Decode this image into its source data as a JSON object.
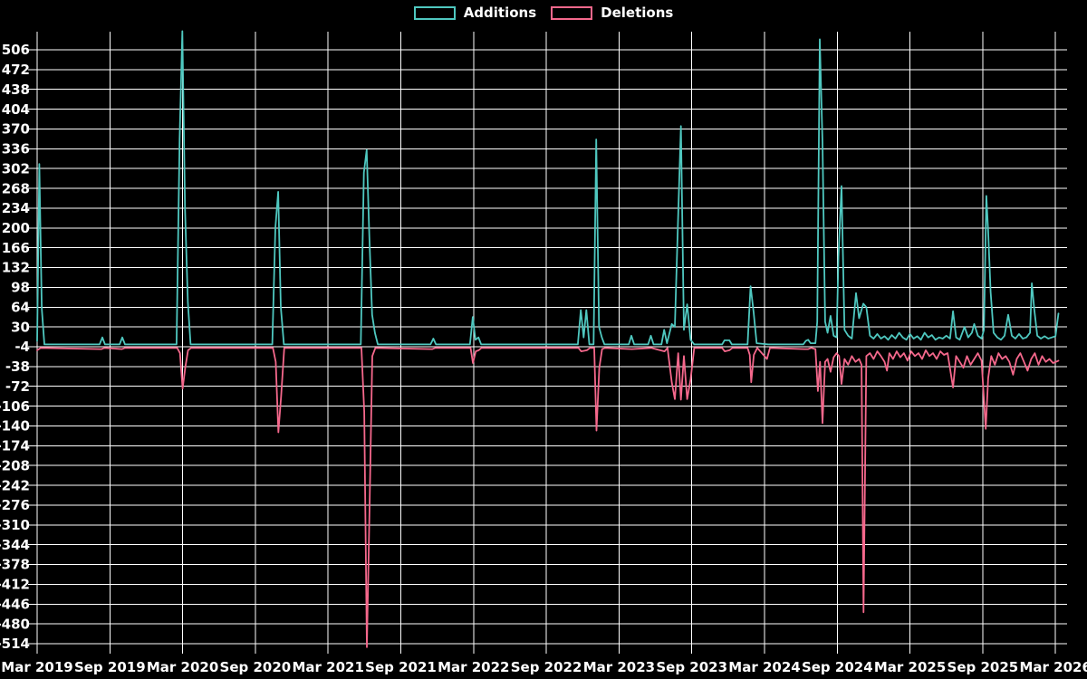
{
  "colors": {
    "background": "#000000",
    "grid": "#ffffff",
    "text": "#ffffff",
    "additions": "#4fc8c0",
    "deletions": "#f5688c"
  },
  "chart_data": {
    "type": "line",
    "title": "",
    "xlabel": "",
    "ylabel": "",
    "grid": true,
    "legend_position": "top-center",
    "x_unit": "months since Mar 2019 (weekly commit additions/deletions)",
    "x_tick_labels": [
      "Mar 2019",
      "Sep 2019",
      "Mar 2020",
      "Sep 2020",
      "Mar 2021",
      "Sep 2021",
      "Mar 2022",
      "Sep 2022",
      "Mar 2023",
      "Sep 2023",
      "Mar 2024",
      "Sep 2024",
      "Mar 2025",
      "Sep 2025",
      "Mar 2026"
    ],
    "x_tick_months": [
      0,
      6,
      12,
      18,
      24,
      30,
      36,
      42,
      48,
      54,
      60,
      66,
      72,
      78,
      84
    ],
    "y_ticks": [
      506,
      472,
      438,
      404,
      370,
      336,
      302,
      268,
      234,
      200,
      166,
      132,
      98,
      64,
      30,
      -4,
      -38,
      -72,
      -106,
      -140,
      -174,
      -208,
      -242,
      -276,
      -310,
      -344,
      -378,
      -412,
      -446,
      -480,
      -514
    ],
    "y_range": [
      -514,
      506
    ],
    "series": [
      {
        "name": "Additions",
        "color_key": "additions",
        "points": [
          [
            0,
            6
          ],
          [
            0.18,
            310
          ],
          [
            0.38,
            62
          ],
          [
            0.6,
            0
          ],
          [
            5.15,
            0
          ],
          [
            5.38,
            12
          ],
          [
            5.6,
            0
          ],
          [
            6.8,
            0
          ],
          [
            7.02,
            12
          ],
          [
            7.25,
            0
          ],
          [
            11.5,
            0
          ],
          [
            11.75,
            354
          ],
          [
            11.98,
            538
          ],
          [
            12.2,
            230
          ],
          [
            12.43,
            72
          ],
          [
            12.66,
            0
          ],
          [
            19.4,
            0
          ],
          [
            19.65,
            200
          ],
          [
            19.88,
            262
          ],
          [
            20.1,
            64
          ],
          [
            20.35,
            0
          ],
          [
            26.7,
            0
          ],
          [
            26.95,
            295
          ],
          [
            27.18,
            334
          ],
          [
            27.4,
            187
          ],
          [
            27.63,
            51
          ],
          [
            27.86,
            20
          ],
          [
            28.1,
            0
          ],
          [
            32.45,
            0
          ],
          [
            32.68,
            10
          ],
          [
            32.9,
            0
          ],
          [
            35.7,
            0
          ],
          [
            35.93,
            47
          ],
          [
            36.16,
            8
          ],
          [
            36.4,
            12
          ],
          [
            36.63,
            0
          ],
          [
            44.6,
            0
          ],
          [
            44.85,
            59
          ],
          [
            45.08,
            12
          ],
          [
            45.3,
            59
          ],
          [
            45.55,
            0
          ],
          [
            45.9,
            0
          ],
          [
            46.12,
            352
          ],
          [
            46.35,
            30
          ],
          [
            46.58,
            12
          ],
          [
            46.8,
            0
          ],
          [
            48.8,
            0
          ],
          [
            49.02,
            15
          ],
          [
            49.25,
            0
          ],
          [
            50.4,
            0
          ],
          [
            50.62,
            15
          ],
          [
            50.85,
            0
          ],
          [
            51.5,
            0
          ],
          [
            51.72,
            25
          ],
          [
            51.95,
            2
          ],
          [
            52.35,
            35
          ],
          [
            52.6,
            30
          ],
          [
            52.88,
            222
          ],
          [
            53.1,
            375
          ],
          [
            53.35,
            25
          ],
          [
            53.62,
            69
          ],
          [
            53.9,
            8
          ],
          [
            54.2,
            0
          ],
          [
            56.5,
            0
          ],
          [
            56.7,
            7
          ],
          [
            57.1,
            7
          ],
          [
            57.3,
            0
          ],
          [
            58.6,
            0
          ],
          [
            58.85,
            100
          ],
          [
            59.1,
            55
          ],
          [
            59.35,
            2
          ],
          [
            60.3,
            0
          ],
          [
            63.2,
            0
          ],
          [
            63.4,
            6
          ],
          [
            63.6,
            8
          ],
          [
            63.8,
            2
          ],
          [
            64.2,
            2
          ],
          [
            64.35,
            39
          ],
          [
            64.56,
            524
          ],
          [
            64.78,
            347
          ],
          [
            65,
            39
          ],
          [
            65.2,
            20
          ],
          [
            65.45,
            49
          ],
          [
            65.7,
            15
          ],
          [
            65.95,
            12
          ],
          [
            66.1,
            150
          ],
          [
            66.35,
            272
          ],
          [
            66.6,
            25
          ],
          [
            66.9,
            15
          ],
          [
            67.2,
            10
          ],
          [
            67.55,
            88
          ],
          [
            67.8,
            45
          ],
          [
            68.15,
            70
          ],
          [
            68.4,
            64
          ],
          [
            68.7,
            15
          ],
          [
            69,
            10
          ],
          [
            69.3,
            18
          ],
          [
            69.6,
            10
          ],
          [
            69.9,
            14
          ],
          [
            70.2,
            8
          ],
          [
            70.5,
            16
          ],
          [
            70.8,
            10
          ],
          [
            71.1,
            20
          ],
          [
            71.4,
            12
          ],
          [
            71.7,
            8
          ],
          [
            72,
            18
          ],
          [
            72.3,
            10
          ],
          [
            72.6,
            14
          ],
          [
            72.9,
            8
          ],
          [
            73.2,
            20
          ],
          [
            73.5,
            12
          ],
          [
            73.8,
            16
          ],
          [
            74.1,
            8
          ],
          [
            74.4,
            12
          ],
          [
            74.7,
            10
          ],
          [
            75,
            15
          ],
          [
            75.3,
            10
          ],
          [
            75.55,
            57
          ],
          [
            75.8,
            12
          ],
          [
            76.1,
            8
          ],
          [
            76.5,
            30
          ],
          [
            76.8,
            12
          ],
          [
            77.1,
            20
          ],
          [
            77.3,
            35
          ],
          [
            77.6,
            15
          ],
          [
            77.9,
            10
          ],
          [
            78.1,
            25
          ],
          [
            78.3,
            255
          ],
          [
            78.45,
            194
          ],
          [
            78.65,
            90
          ],
          [
            78.9,
            20
          ],
          [
            79.2,
            12
          ],
          [
            79.5,
            8
          ],
          [
            79.8,
            15
          ],
          [
            80.1,
            51
          ],
          [
            80.4,
            15
          ],
          [
            80.7,
            10
          ],
          [
            81,
            18
          ],
          [
            81.3,
            10
          ],
          [
            81.6,
            12
          ],
          [
            81.9,
            20
          ],
          [
            82.05,
            105
          ],
          [
            82.25,
            60
          ],
          [
            82.5,
            15
          ],
          [
            82.8,
            10
          ],
          [
            83.1,
            14
          ],
          [
            83.4,
            10
          ],
          [
            83.7,
            12
          ],
          [
            84,
            14
          ],
          [
            84.25,
            53
          ]
        ]
      },
      {
        "name": "Deletions",
        "color_key": "deletions",
        "points": [
          [
            0,
            -10
          ],
          [
            0.3,
            -6
          ],
          [
            5.3,
            -8
          ],
          [
            5.55,
            -6
          ],
          [
            7,
            -8
          ],
          [
            7.25,
            -6
          ],
          [
            11.55,
            -6
          ],
          [
            11.78,
            -15
          ],
          [
            12,
            -76
          ],
          [
            12.22,
            -40
          ],
          [
            12.45,
            -10
          ],
          [
            12.7,
            -6
          ],
          [
            19.45,
            -6
          ],
          [
            19.68,
            -30
          ],
          [
            19.9,
            -151
          ],
          [
            20.12,
            -90
          ],
          [
            20.38,
            -6
          ],
          [
            26.75,
            -6
          ],
          [
            26.98,
            -115
          ],
          [
            27.2,
            -520
          ],
          [
            27.42,
            -278
          ],
          [
            27.65,
            -20
          ],
          [
            27.9,
            -6
          ],
          [
            32.6,
            -8
          ],
          [
            32.85,
            -6
          ],
          [
            35.75,
            -6
          ],
          [
            35.95,
            -32
          ],
          [
            36.18,
            -12
          ],
          [
            36.42,
            -10
          ],
          [
            36.65,
            -6
          ],
          [
            44.65,
            -6
          ],
          [
            44.88,
            -12
          ],
          [
            45.35,
            -10
          ],
          [
            45.6,
            -6
          ],
          [
            45.95,
            -6
          ],
          [
            46.14,
            -148
          ],
          [
            46.37,
            -40
          ],
          [
            46.6,
            -8
          ],
          [
            46.85,
            -6
          ],
          [
            49.05,
            -8
          ],
          [
            50.65,
            -6
          ],
          [
            51.75,
            -12
          ],
          [
            52,
            -6
          ],
          [
            52.35,
            -65
          ],
          [
            52.6,
            -94
          ],
          [
            52.88,
            -15
          ],
          [
            53.1,
            -95
          ],
          [
            53.35,
            -20
          ],
          [
            53.62,
            -94
          ],
          [
            53.9,
            -60
          ],
          [
            54.2,
            -6
          ],
          [
            56.5,
            -6
          ],
          [
            56.72,
            -12
          ],
          [
            57.1,
            -10
          ],
          [
            57.35,
            -6
          ],
          [
            58.6,
            -6
          ],
          [
            58.78,
            -18
          ],
          [
            58.9,
            -65
          ],
          [
            59.12,
            -18
          ],
          [
            59.4,
            -6
          ],
          [
            60.2,
            -25
          ],
          [
            60.45,
            -6
          ],
          [
            63.3,
            -8
          ],
          [
            63.6,
            -8
          ],
          [
            63.85,
            -6
          ],
          [
            64.2,
            -8
          ],
          [
            64.4,
            -80
          ],
          [
            64.58,
            -30
          ],
          [
            64.78,
            -135
          ],
          [
            65,
            -30
          ],
          [
            65.2,
            -25
          ],
          [
            65.45,
            -47
          ],
          [
            65.7,
            -22
          ],
          [
            65.95,
            -15
          ],
          [
            66.15,
            -20
          ],
          [
            66.35,
            -68
          ],
          [
            66.6,
            -25
          ],
          [
            66.9,
            -35
          ],
          [
            67.2,
            -20
          ],
          [
            67.5,
            -30
          ],
          [
            67.8,
            -25
          ],
          [
            68,
            -35
          ],
          [
            68.17,
            -460
          ],
          [
            68.4,
            -20
          ],
          [
            68.7,
            -15
          ],
          [
            69,
            -25
          ],
          [
            69.3,
            -12
          ],
          [
            69.6,
            -20
          ],
          [
            69.9,
            -30
          ],
          [
            70.1,
            -45
          ],
          [
            70.3,
            -15
          ],
          [
            70.6,
            -25
          ],
          [
            70.9,
            -12
          ],
          [
            71.2,
            -22
          ],
          [
            71.5,
            -15
          ],
          [
            71.8,
            -28
          ],
          [
            72.1,
            -12
          ],
          [
            72.4,
            -20
          ],
          [
            72.7,
            -15
          ],
          [
            73,
            -25
          ],
          [
            73.3,
            -10
          ],
          [
            73.6,
            -20
          ],
          [
            73.9,
            -15
          ],
          [
            74.2,
            -25
          ],
          [
            74.5,
            -12
          ],
          [
            74.8,
            -18
          ],
          [
            75.1,
            -15
          ],
          [
            75.55,
            -74
          ],
          [
            75.8,
            -20
          ],
          [
            76.1,
            -30
          ],
          [
            76.4,
            -40
          ],
          [
            76.7,
            -20
          ],
          [
            77,
            -35
          ],
          [
            77.3,
            -25
          ],
          [
            77.6,
            -15
          ],
          [
            77.9,
            -28
          ],
          [
            78.25,
            -145
          ],
          [
            78.45,
            -58
          ],
          [
            78.7,
            -20
          ],
          [
            79,
            -35
          ],
          [
            79.3,
            -15
          ],
          [
            79.6,
            -25
          ],
          [
            79.9,
            -20
          ],
          [
            80.2,
            -30
          ],
          [
            80.5,
            -52
          ],
          [
            80.8,
            -25
          ],
          [
            81.1,
            -15
          ],
          [
            81.4,
            -30
          ],
          [
            81.7,
            -45
          ],
          [
            82,
            -25
          ],
          [
            82.3,
            -15
          ],
          [
            82.6,
            -35
          ],
          [
            82.9,
            -20
          ],
          [
            83.2,
            -30
          ],
          [
            83.5,
            -25
          ],
          [
            83.8,
            -32
          ],
          [
            84.25,
            -28
          ]
        ]
      }
    ]
  }
}
